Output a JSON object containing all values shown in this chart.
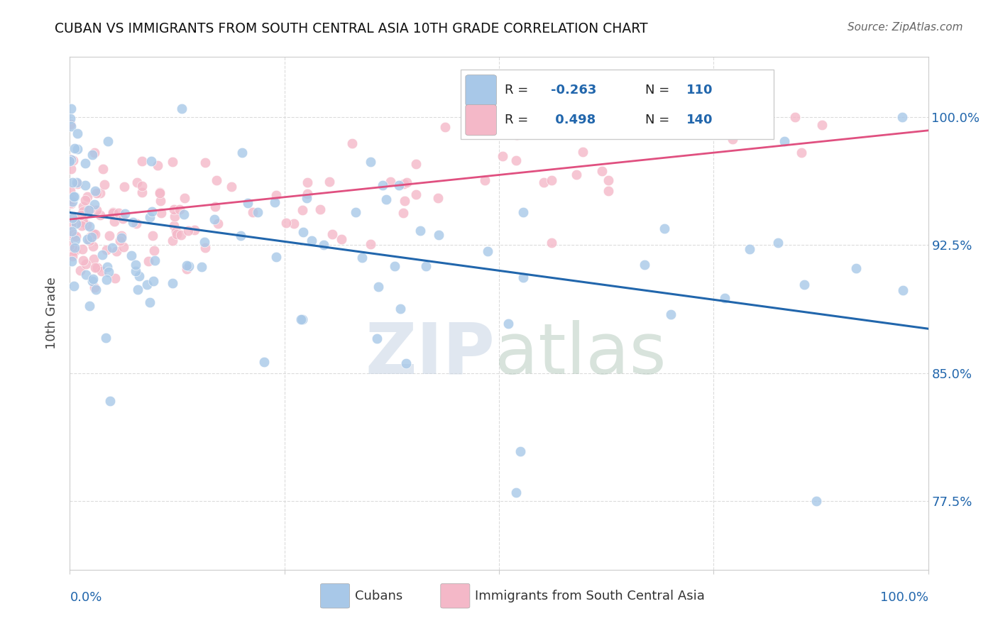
{
  "title": "CUBAN VS IMMIGRANTS FROM SOUTH CENTRAL ASIA 10TH GRADE CORRELATION CHART",
  "source": "Source: ZipAtlas.com",
  "ylabel": "10th Grade",
  "ytick_labels": [
    "77.5%",
    "85.0%",
    "92.5%",
    "100.0%"
  ],
  "ytick_values": [
    0.775,
    0.85,
    0.925,
    1.0
  ],
  "xlim": [
    0.0,
    1.0
  ],
  "ylim": [
    0.735,
    1.035
  ],
  "blue_color": "#a8c8e8",
  "pink_color": "#f4b8c8",
  "blue_line_color": "#2166ac",
  "pink_line_color": "#e05080",
  "blue_R": -0.263,
  "pink_R": 0.498,
  "blue_N": 110,
  "pink_N": 140,
  "watermark_zip_color": "#c8d4e4",
  "watermark_atlas_color": "#b8ccc0",
  "grid_color": "#d8d8d8",
  "blue_line_y0": 0.944,
  "blue_line_y1": 0.876,
  "pink_line_y0": 0.94,
  "pink_line_y1": 0.992
}
